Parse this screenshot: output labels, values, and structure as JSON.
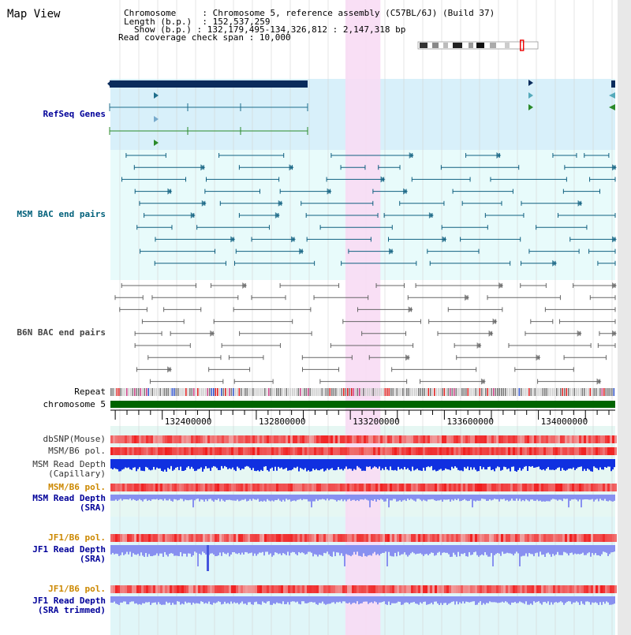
{
  "title": "Map View",
  "header": {
    "chromosome_key": "Chromosome",
    "chromosome_value": "Chromosome 5, reference assembly (C57BL/6J) (Build 37)",
    "length_key": "Length (b.p.)",
    "length_value": "152,537,259",
    "show_key": "Show (b.p.)",
    "show_value": "132,179,495-134,326,812 : 2,147,318 bp",
    "coverage_key": "Read coverage check span",
    "coverage_value": "10,000"
  },
  "region": {
    "start": 132179495,
    "end": 134326812,
    "highlight_start": 133179000,
    "highlight_end": 133328000
  },
  "chromosome_length": 152537259,
  "tracks": {
    "refseq": "RefSeq Genes",
    "msm_bac": "MSM BAC end pairs",
    "b6n_bac": "B6N BAC end pairs",
    "repeat": "Repeat",
    "chromosome": "chromosome 5",
    "dbsnp": "dbSNP(Mouse)",
    "msm_b6_pol_1": "MSM/B6 pol.",
    "msm_read_depth_cap_1": "MSM Read Depth",
    "msm_read_depth_cap_2": "(Capillary)",
    "msm_b6_pol_2": "MSM/B6 pol.",
    "msm_read_depth_sra_1": "MSM Read Depth",
    "msm_read_depth_sra_2": "(SRA)",
    "jf1_b6_pol_1": "JF1/B6 pol.",
    "jf1_read_depth_sra_1": "JF1 Read Depth",
    "jf1_read_depth_sra_2": "(SRA)",
    "jf1_b6_pol_2": "JF1/B6 pol.",
    "jf1_read_depth_trim_1": "JF1 Read Depth",
    "jf1_read_depth_trim_2": "(SRA trimmed)"
  },
  "ruler_ticks": [
    "132400000",
    "132800000",
    "133200000",
    "133600000",
    "134000000"
  ],
  "colors": {
    "refseq_bg": "#d8f0fa",
    "msm_bg": "#e8fbfb",
    "highlight": "#f8dcf4",
    "chromosome_bar": "#006400",
    "refseq_line": "#1e6e8c",
    "refseq_thick": "#0a2c5c",
    "msm_pair": "#106080",
    "b6n_pair": "#666666",
    "depth_dark": "#1030e0",
    "depth_light": "#8890f0",
    "label_blue": "#000099",
    "label_orange": "#cc8800",
    "label_dark": "#333333",
    "label_teal": "#00607a"
  },
  "icons": {
    "ideogram": "chromosome-ideogram-icon",
    "ruler": "ruler-icon"
  }
}
